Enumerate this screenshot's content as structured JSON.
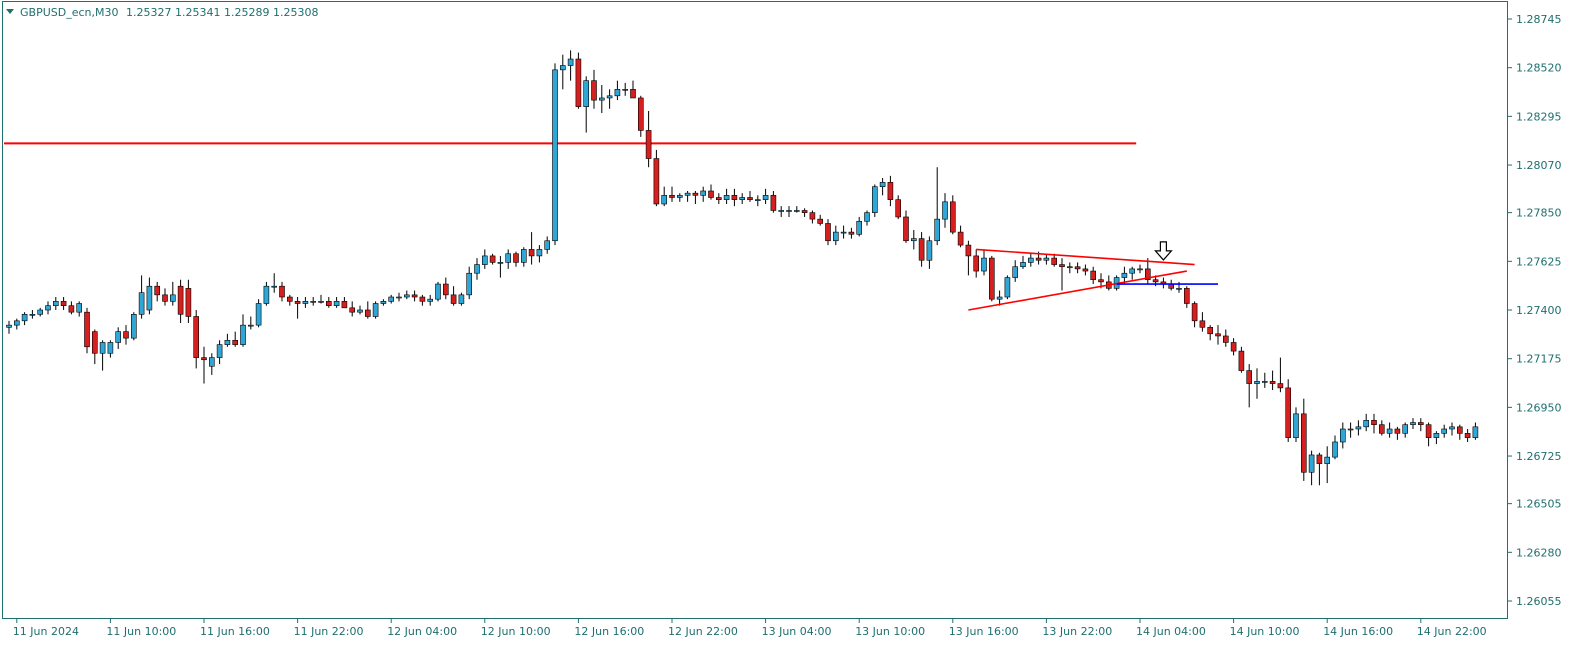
{
  "header": {
    "symbol": "GBPUSD_ecn,M30",
    "ohlc": "1.25327 1.25341 1.25289 1.25308"
  },
  "colors": {
    "up": "#2fa6d6",
    "down": "#d61f1f",
    "wick": "#000000",
    "axis": "#1f6f6f",
    "trendline": "#ff0000",
    "support_line": "#0000ff",
    "hline": "#ff0000",
    "arrow": "#000000"
  },
  "chart_data": {
    "type": "candlestick",
    "symbol": "GBPUSD_ecn",
    "timeframe": "M30",
    "ylim": [
      1.2593,
      1.2896
    ],
    "yticks": [
      1.28745,
      1.2852,
      1.28295,
      1.2807,
      1.2785,
      1.27625,
      1.274,
      1.27175,
      1.2695,
      1.26725,
      1.26505,
      1.2628,
      1.26055
    ],
    "xticks": [
      {
        "index": 1,
        "label": "11 Jun 2024"
      },
      {
        "index": 13,
        "label": "11 Jun 10:00"
      },
      {
        "index": 25,
        "label": "11 Jun 16:00"
      },
      {
        "index": 37,
        "label": "11 Jun 22:00"
      },
      {
        "index": 49,
        "label": "12 Jun 04:00"
      },
      {
        "index": 61,
        "label": "12 Jun 10:00"
      },
      {
        "index": 73,
        "label": "12 Jun 16:00"
      },
      {
        "index": 85,
        "label": "12 Jun 22:00"
      },
      {
        "index": 97,
        "label": "13 Jun 04:00"
      },
      {
        "index": 109,
        "label": "13 Jun 10:00"
      },
      {
        "index": 121,
        "label": "13 Jun 16:00"
      },
      {
        "index": 133,
        "label": "13 Jun 22:00"
      },
      {
        "index": 145,
        "label": "14 Jun 04:00"
      },
      {
        "index": 157,
        "label": "14 Jun 10:00"
      },
      {
        "index": 169,
        "label": "14 Jun 16:00"
      },
      {
        "index": 181,
        "label": "14 Jun 22:00"
      }
    ],
    "candles": [
      [
        1.2732,
        1.2735,
        1.2729,
        1.2733
      ],
      [
        1.2733,
        1.2736,
        1.2731,
        1.2735
      ],
      [
        1.2735,
        1.2739,
        1.2733,
        1.2738
      ],
      [
        1.2738,
        1.274,
        1.2736,
        1.2738
      ],
      [
        1.2738,
        1.2741,
        1.2737,
        1.274
      ],
      [
        1.274,
        1.2744,
        1.2738,
        1.2742
      ],
      [
        1.2742,
        1.2746,
        1.274,
        1.2744
      ],
      [
        1.2744,
        1.2746,
        1.274,
        1.2742
      ],
      [
        1.2742,
        1.2744,
        1.2738,
        1.2739
      ],
      [
        1.2739,
        1.2744,
        1.2737,
        1.2743
      ],
      [
        1.2739,
        1.2741,
        1.272,
        1.2723
      ],
      [
        1.273,
        1.2731,
        1.2715,
        1.272
      ],
      [
        1.272,
        1.2726,
        1.2712,
        1.2725
      ],
      [
        1.272,
        1.2726,
        1.2718,
        1.2725
      ],
      [
        1.2725,
        1.2732,
        1.2722,
        1.273
      ],
      [
        1.273,
        1.2733,
        1.2724,
        1.2727
      ],
      [
        1.2727,
        1.2739,
        1.2726,
        1.2738
      ],
      [
        1.2738,
        1.2756,
        1.2736,
        1.2748
      ],
      [
        1.274,
        1.2755,
        1.2738,
        1.2751
      ],
      [
        1.2751,
        1.2753,
        1.2744,
        1.2747
      ],
      [
        1.2747,
        1.275,
        1.2742,
        1.2744
      ],
      [
        1.2744,
        1.2753,
        1.2742,
        1.2747
      ],
      [
        1.2751,
        1.2754,
        1.2734,
        1.2738
      ],
      [
        1.275,
        1.2754,
        1.2734,
        1.2737
      ],
      [
        1.2737,
        1.274,
        1.2713,
        1.2718
      ],
      [
        1.2718,
        1.2723,
        1.2706,
        1.2717
      ],
      [
        1.2714,
        1.272,
        1.271,
        1.2718
      ],
      [
        1.2718,
        1.2726,
        1.2715,
        1.2724
      ],
      [
        1.2724,
        1.2729,
        1.2723,
        1.2726
      ],
      [
        1.2726,
        1.273,
        1.2723,
        1.2724
      ],
      [
        1.2724,
        1.2738,
        1.2723,
        1.2733
      ],
      [
        1.2733,
        1.2737,
        1.2731,
        1.2733
      ],
      [
        1.2733,
        1.2745,
        1.2732,
        1.2743
      ],
      [
        1.2743,
        1.2753,
        1.2742,
        1.2751
      ],
      [
        1.2751,
        1.2757,
        1.2748,
        1.2751
      ],
      [
        1.2751,
        1.2753,
        1.2744,
        1.2746
      ],
      [
        1.2746,
        1.2747,
        1.2742,
        1.2744
      ],
      [
        1.2744,
        1.2746,
        1.2736,
        1.2743
      ],
      [
        1.2743,
        1.2746,
        1.2741,
        1.2744
      ],
      [
        1.2744,
        1.2746,
        1.2742,
        1.2744
      ],
      [
        1.2744,
        1.2747,
        1.2743,
        1.2744
      ],
      [
        1.2744,
        1.2746,
        1.2741,
        1.2742
      ],
      [
        1.2742,
        1.2746,
        1.2741,
        1.2744
      ],
      [
        1.2744,
        1.2746,
        1.2741,
        1.2741
      ],
      [
        1.2741,
        1.2744,
        1.2737,
        1.2739
      ],
      [
        1.2739,
        1.2742,
        1.2738,
        1.274
      ],
      [
        1.274,
        1.2744,
        1.2736,
        1.2737
      ],
      [
        1.2737,
        1.2744,
        1.2736,
        1.2743
      ],
      [
        1.2743,
        1.2745,
        1.2742,
        1.2744
      ],
      [
        1.2744,
        1.2747,
        1.2743,
        1.2746
      ],
      [
        1.2746,
        1.2748,
        1.2744,
        1.2746
      ],
      [
        1.2746,
        1.2749,
        1.2745,
        1.2747
      ],
      [
        1.2747,
        1.2749,
        1.2744,
        1.2746
      ],
      [
        1.2746,
        1.2747,
        1.2742,
        1.2744
      ],
      [
        1.2744,
        1.2747,
        1.2742,
        1.2745
      ],
      [
        1.2745,
        1.2753,
        1.2744,
        1.2752
      ],
      [
        1.2752,
        1.2755,
        1.2745,
        1.2747
      ],
      [
        1.2747,
        1.2751,
        1.2742,
        1.2743
      ],
      [
        1.2743,
        1.2748,
        1.2742,
        1.2747
      ],
      [
        1.2747,
        1.276,
        1.2745,
        1.2757
      ],
      [
        1.2757,
        1.2764,
        1.2754,
        1.2761
      ],
      [
        1.2761,
        1.2768,
        1.2759,
        1.2765
      ],
      [
        1.2765,
        1.2766,
        1.2761,
        1.2762
      ],
      [
        1.2762,
        1.2765,
        1.2755,
        1.2762
      ],
      [
        1.2762,
        1.2768,
        1.2759,
        1.2766
      ],
      [
        1.2766,
        1.2767,
        1.276,
        1.2762
      ],
      [
        1.2762,
        1.2769,
        1.276,
        1.2768
      ],
      [
        1.2768,
        1.2776,
        1.2761,
        1.2765
      ],
      [
        1.2765,
        1.277,
        1.2762,
        1.2768
      ],
      [
        1.2768,
        1.2774,
        1.2766,
        1.2772
      ],
      [
        1.2772,
        1.2854,
        1.277,
        1.2851
      ],
      [
        1.2851,
        1.2858,
        1.2842,
        1.2853
      ],
      [
        1.2853,
        1.286,
        1.2846,
        1.2856
      ],
      [
        1.2856,
        1.2859,
        1.2833,
        1.2834
      ],
      [
        1.2834,
        1.2848,
        1.2822,
        1.2846
      ],
      [
        1.2846,
        1.2851,
        1.2833,
        1.2837
      ],
      [
        1.2837,
        1.2844,
        1.2831,
        1.2838
      ],
      [
        1.2838,
        1.2842,
        1.2833,
        1.2839
      ],
      [
        1.2839,
        1.2846,
        1.2837,
        1.2842
      ],
      [
        1.2842,
        1.2845,
        1.2839,
        1.2842
      ],
      [
        1.2842,
        1.2846,
        1.2838,
        1.2838
      ],
      [
        1.2838,
        1.2839,
        1.282,
        1.2823
      ],
      [
        1.2823,
        1.2832,
        1.2806,
        1.281
      ],
      [
        1.281,
        1.2814,
        1.2788,
        1.2789
      ],
      [
        1.2789,
        1.2797,
        1.2788,
        1.2793
      ],
      [
        1.2793,
        1.2797,
        1.279,
        1.2792
      ],
      [
        1.2792,
        1.2794,
        1.279,
        1.2793
      ],
      [
        1.2793,
        1.2795,
        1.279,
        1.2794
      ],
      [
        1.2794,
        1.2795,
        1.2789,
        1.2793
      ],
      [
        1.2793,
        1.2797,
        1.279,
        1.2795
      ],
      [
        1.2795,
        1.2798,
        1.2791,
        1.2792
      ],
      [
        1.2792,
        1.2794,
        1.2789,
        1.2791
      ],
      [
        1.2791,
        1.2796,
        1.2789,
        1.2793
      ],
      [
        1.2793,
        1.2796,
        1.2788,
        1.2791
      ],
      [
        1.2791,
        1.2794,
        1.2789,
        1.2792
      ],
      [
        1.2792,
        1.2795,
        1.279,
        1.2791
      ],
      [
        1.2791,
        1.2793,
        1.2788,
        1.2791
      ],
      [
        1.2791,
        1.2796,
        1.2789,
        1.2793
      ],
      [
        1.2793,
        1.2795,
        1.2785,
        1.2786
      ],
      [
        1.2786,
        1.2788,
        1.2783,
        1.2786
      ],
      [
        1.2786,
        1.2788,
        1.2783,
        1.2786
      ],
      [
        1.2786,
        1.2788,
        1.2785,
        1.2786
      ],
      [
        1.2786,
        1.2787,
        1.2783,
        1.2785
      ],
      [
        1.2785,
        1.2786,
        1.278,
        1.2782
      ],
      [
        1.2782,
        1.2784,
        1.2779,
        1.278
      ],
      [
        1.278,
        1.2782,
        1.277,
        1.2772
      ],
      [
        1.2772,
        1.2779,
        1.277,
        1.2776
      ],
      [
        1.2776,
        1.2779,
        1.2773,
        1.2776
      ],
      [
        1.2776,
        1.2778,
        1.2773,
        1.2775
      ],
      [
        1.2775,
        1.2783,
        1.2774,
        1.2781
      ],
      [
        1.2781,
        1.2786,
        1.2779,
        1.2785
      ],
      [
        1.2785,
        1.2798,
        1.2783,
        1.2797
      ],
      [
        1.2797,
        1.2801,
        1.2793,
        1.2799
      ],
      [
        1.2799,
        1.2802,
        1.2788,
        1.2791
      ],
      [
        1.2791,
        1.2793,
        1.2782,
        1.2783
      ],
      [
        1.2783,
        1.2786,
        1.2771,
        1.2772
      ],
      [
        1.2772,
        1.2777,
        1.2768,
        1.2773
      ],
      [
        1.2773,
        1.2776,
        1.276,
        1.2763
      ],
      [
        1.2763,
        1.2774,
        1.2759,
        1.2772
      ],
      [
        1.2772,
        1.2806,
        1.277,
        1.2782
      ],
      [
        1.2782,
        1.2794,
        1.2778,
        1.279
      ],
      [
        1.279,
        1.2793,
        1.2775,
        1.2776
      ],
      [
        1.2776,
        1.2779,
        1.2769,
        1.277
      ],
      [
        1.277,
        1.2772,
        1.2756,
        1.2765
      ],
      [
        1.2765,
        1.2768,
        1.2755,
        1.2758
      ],
      [
        1.2758,
        1.2768,
        1.2756,
        1.2764
      ],
      [
        1.2764,
        1.2765,
        1.2744,
        1.2745
      ],
      [
        1.2745,
        1.2749,
        1.2742,
        1.2746
      ],
      [
        1.2746,
        1.2756,
        1.2745,
        1.2755
      ],
      [
        1.2755,
        1.2763,
        1.2753,
        1.276
      ],
      [
        1.276,
        1.2765,
        1.2759,
        1.2762
      ],
      [
        1.2762,
        1.2766,
        1.276,
        1.2764
      ],
      [
        1.2764,
        1.2767,
        1.2761,
        1.2763
      ],
      [
        1.2763,
        1.2766,
        1.2761,
        1.2764
      ],
      [
        1.2764,
        1.2766,
        1.276,
        1.2761
      ],
      [
        1.2761,
        1.2764,
        1.2749,
        1.276
      ],
      [
        1.276,
        1.2762,
        1.2757,
        1.276
      ],
      [
        1.276,
        1.2762,
        1.2757,
        1.2759
      ],
      [
        1.2759,
        1.2761,
        1.2756,
        1.2758
      ],
      [
        1.2758,
        1.276,
        1.2752,
        1.2754
      ],
      [
        1.2754,
        1.2757,
        1.275,
        1.2753
      ],
      [
        1.2753,
        1.2756,
        1.2749,
        1.275
      ],
      [
        1.275,
        1.2756,
        1.2749,
        1.2755
      ],
      [
        1.2755,
        1.276,
        1.2752,
        1.2757
      ],
      [
        1.2757,
        1.276,
        1.2754,
        1.2759
      ],
      [
        1.2759,
        1.2761,
        1.2757,
        1.2759
      ],
      [
        1.2759,
        1.2764,
        1.2752,
        1.2754
      ],
      [
        1.2754,
        1.2756,
        1.2751,
        1.2753
      ],
      [
        1.2753,
        1.2755,
        1.275,
        1.2752
      ],
      [
        1.2752,
        1.2754,
        1.2749,
        1.275
      ],
      [
        1.275,
        1.2753,
        1.2748,
        1.275
      ],
      [
        1.275,
        1.2751,
        1.2741,
        1.2743
      ],
      [
        1.2743,
        1.2744,
        1.2732,
        1.2735
      ],
      [
        1.2735,
        1.2739,
        1.273,
        1.2732
      ],
      [
        1.2732,
        1.2733,
        1.2726,
        1.2729
      ],
      [
        1.2729,
        1.2733,
        1.2724,
        1.2728
      ],
      [
        1.2728,
        1.2731,
        1.2723,
        1.2725
      ],
      [
        1.2725,
        1.2727,
        1.2719,
        1.2721
      ],
      [
        1.2721,
        1.2723,
        1.2711,
        1.2712
      ],
      [
        1.2712,
        1.2715,
        1.2695,
        1.2706
      ],
      [
        1.2706,
        1.2713,
        1.2699,
        1.2707
      ],
      [
        1.2707,
        1.2711,
        1.2704,
        1.2707
      ],
      [
        1.2707,
        1.2712,
        1.2703,
        1.2706
      ],
      [
        1.2706,
        1.2718,
        1.2702,
        1.2704
      ],
      [
        1.2704,
        1.2708,
        1.2679,
        1.2681
      ],
      [
        1.2681,
        1.2695,
        1.2679,
        1.2692
      ],
      [
        1.2692,
        1.2699,
        1.2661,
        1.2665
      ],
      [
        1.2665,
        1.2675,
        1.2659,
        1.2673
      ],
      [
        1.2673,
        1.2674,
        1.2659,
        1.2669
      ],
      [
        1.2669,
        1.2677,
        1.266,
        1.2672
      ],
      [
        1.2672,
        1.2682,
        1.2671,
        1.2679
      ],
      [
        1.2679,
        1.2688,
        1.2676,
        1.2685
      ],
      [
        1.2685,
        1.2688,
        1.2681,
        1.2685
      ],
      [
        1.2685,
        1.2689,
        1.2682,
        1.2686
      ],
      [
        1.2686,
        1.2692,
        1.2684,
        1.2689
      ],
      [
        1.2689,
        1.2692,
        1.2683,
        1.2687
      ],
      [
        1.2687,
        1.2689,
        1.2682,
        1.2683
      ],
      [
        1.2683,
        1.2688,
        1.2681,
        1.2685
      ],
      [
        1.2685,
        1.2686,
        1.268,
        1.2683
      ],
      [
        1.2683,
        1.2688,
        1.2681,
        1.2687
      ],
      [
        1.2687,
        1.269,
        1.2685,
        1.2688
      ],
      [
        1.2688,
        1.269,
        1.2684,
        1.2687
      ],
      [
        1.2687,
        1.2688,
        1.2677,
        1.2681
      ],
      [
        1.2681,
        1.2684,
        1.2678,
        1.2683
      ],
      [
        1.2683,
        1.2687,
        1.2681,
        1.2685
      ],
      [
        1.2685,
        1.2688,
        1.2682,
        1.2686
      ],
      [
        1.2686,
        1.2687,
        1.268,
        1.2683
      ],
      [
        1.2683,
        1.2685,
        1.2679,
        1.2681
      ],
      [
        1.2681,
        1.2688,
        1.268,
        1.2686
      ]
    ],
    "horizontal_lines": [
      {
        "price": 1.2817,
        "from_index": 0,
        "to_index": 144,
        "color": "hline"
      }
    ],
    "trend_lines": [
      {
        "from": [
          124,
          1.2768
        ],
        "to": [
          152,
          1.2761
        ],
        "color": "trendline"
      },
      {
        "from": [
          123,
          1.274
        ],
        "to": [
          151,
          1.2758
        ],
        "color": "trendline"
      },
      {
        "from": [
          142,
          1.2752
        ],
        "to": [
          155,
          1.2752
        ],
        "color": "support_line"
      }
    ],
    "markers": [
      {
        "type": "down-arrow",
        "index": 148,
        "price": 1.2765
      }
    ]
  }
}
